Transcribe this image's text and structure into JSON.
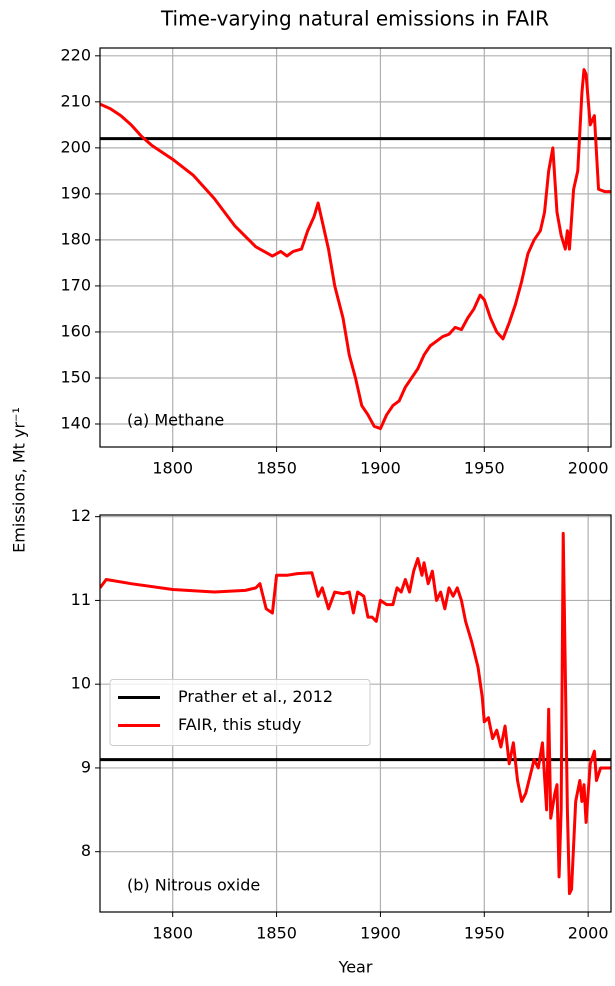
{
  "title": "Time-varying natural emissions in FAIR",
  "ylabel": "Emissions, Mt yr⁻¹",
  "chart_data": [
    {
      "type": "line",
      "annotation": "(a) Methane",
      "grid": true,
      "xlim": [
        1765,
        2011
      ],
      "ylim": [
        135,
        221.7
      ],
      "xticks": [
        1800,
        1850,
        1900,
        1950,
        2000
      ],
      "yticks": [
        140,
        150,
        160,
        170,
        180,
        190,
        200,
        210,
        220
      ],
      "series": [
        {
          "color": "#000000",
          "x": [
            1765,
            2011
          ],
          "values": [
            202,
            202
          ]
        },
        {
          "color": "#ff0000",
          "x": [
            1765,
            1770,
            1775,
            1780,
            1785,
            1790,
            1800,
            1810,
            1820,
            1830,
            1840,
            1848,
            1852,
            1855,
            1858,
            1862,
            1865,
            1868,
            1870,
            1872,
            1875,
            1878,
            1882,
            1885,
            1888,
            1891,
            1894,
            1897,
            1900,
            1903,
            1906,
            1909,
            1912,
            1915,
            1918,
            1921,
            1924,
            1927,
            1930,
            1933,
            1936,
            1939,
            1942,
            1945,
            1948,
            1950,
            1953,
            1956,
            1959,
            1962,
            1965,
            1968,
            1971,
            1974,
            1977,
            1979,
            1981,
            1983,
            1985,
            1987,
            1989,
            1990,
            1991,
            1993,
            1995,
            1997,
            1998,
            1999,
            2001,
            2003,
            2005,
            2008,
            2011
          ],
          "values": [
            209.5,
            208.5,
            207,
            205,
            202.5,
            200.5,
            197.5,
            194,
            189,
            183,
            178.5,
            176.5,
            177.5,
            176.5,
            177.5,
            178,
            182,
            185,
            188,
            184,
            178,
            170,
            163,
            155,
            150,
            144,
            142,
            139.5,
            139,
            142,
            144,
            145,
            148,
            150,
            152,
            155,
            157,
            158,
            159,
            159.5,
            161,
            160.5,
            163,
            165,
            168,
            167,
            163,
            160,
            158.5,
            162,
            166,
            171,
            177,
            180,
            182,
            186,
            195,
            200,
            186,
            181,
            178,
            182,
            178,
            191,
            195,
            212,
            217,
            216,
            205,
            207,
            191,
            190.5,
            190.5
          ]
        }
      ]
    },
    {
      "type": "line",
      "annotation": "(b) Nitrous oxide",
      "grid": true,
      "xlabel": "Year",
      "legend": "center left",
      "xlim": [
        1765,
        2011
      ],
      "ylim": [
        7.28,
        12.02
      ],
      "xticks": [
        1800,
        1850,
        1900,
        1950,
        2000
      ],
      "yticks": [
        8,
        9,
        10,
        11,
        12
      ],
      "series": [
        {
          "name": "Prather et al., 2012",
          "color": "#000000",
          "x": [
            1765,
            2011
          ],
          "values": [
            9.1,
            9.1
          ]
        },
        {
          "name": "FAIR, this study",
          "color": "#ff0000",
          "x": [
            1765,
            1768,
            1780,
            1800,
            1820,
            1835,
            1840,
            1842,
            1845,
            1848,
            1850,
            1855,
            1860,
            1867,
            1870,
            1872,
            1875,
            1878,
            1882,
            1885,
            1887,
            1889,
            1892,
            1894,
            1896,
            1898,
            1900,
            1903,
            1906,
            1908,
            1910,
            1912,
            1914,
            1916,
            1918,
            1920,
            1921,
            1923,
            1925,
            1927,
            1929,
            1931,
            1933,
            1935,
            1937,
            1939,
            1941,
            1944,
            1947,
            1949,
            1950,
            1952,
            1954,
            1956,
            1958,
            1960,
            1962,
            1964,
            1966,
            1968,
            1970,
            1972,
            1974,
            1976,
            1978,
            1980,
            1981,
            1982,
            1984,
            1985,
            1986,
            1987,
            1988,
            1990,
            1991,
            1992,
            1994,
            1996,
            1997,
            1998,
            1999,
            2001,
            2003,
            2004,
            2006,
            2011
          ],
          "values": [
            11.15,
            11.25,
            11.2,
            11.13,
            11.1,
            11.12,
            11.15,
            11.2,
            10.9,
            10.85,
            11.3,
            11.3,
            11.32,
            11.33,
            11.05,
            11.15,
            10.9,
            11.1,
            11.08,
            11.1,
            10.85,
            11.1,
            11.05,
            10.8,
            10.8,
            10.75,
            11.0,
            10.95,
            10.95,
            11.15,
            11.1,
            11.25,
            11.1,
            11.35,
            11.5,
            11.3,
            11.45,
            11.2,
            11.35,
            11.0,
            11.1,
            10.9,
            11.15,
            11.05,
            11.15,
            11.0,
            10.75,
            10.5,
            10.2,
            9.85,
            9.55,
            9.6,
            9.35,
            9.45,
            9.25,
            9.5,
            9.05,
            9.3,
            8.85,
            8.6,
            8.7,
            8.9,
            9.1,
            9.0,
            9.3,
            8.5,
            9.7,
            8.4,
            8.7,
            8.8,
            7.7,
            8.5,
            11.8,
            8.5,
            7.5,
            7.55,
            8.6,
            8.85,
            8.6,
            8.8,
            8.35,
            9.05,
            9.2,
            8.85,
            9.0,
            9.0
          ]
        }
      ]
    }
  ]
}
